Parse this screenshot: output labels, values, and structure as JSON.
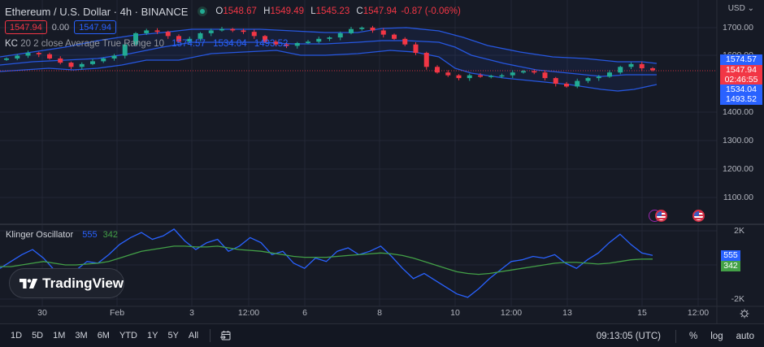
{
  "header": {
    "symbol_title": "Ethereum / U.S. Dollar · 4h · BINANCE",
    "market_status": "open",
    "ohlc": {
      "o_label": "O",
      "o": "1548.67",
      "h_label": "H",
      "h": "1549.49",
      "l_label": "L",
      "l": "1545.23",
      "c_label": "C",
      "c": "1547.94",
      "change": "-0.87 (-0.06%)"
    },
    "sell_price": "1547.94",
    "spread": "0.00",
    "buy_price": "1547.94"
  },
  "indicators": {
    "kc": {
      "name": "KC",
      "params": "20 2 close Average True Range 10",
      "upper": "1574.57",
      "basis": "1534.04",
      "lower": "1493.52"
    },
    "klinger": {
      "name": "Klinger Oscillator",
      "value": "555",
      "signal": "342"
    }
  },
  "price_axis": {
    "currency": "USD",
    "ticks": [
      "1700.00",
      "1600.00",
      "1400.00",
      "1300.00",
      "1200.00",
      "1100.00"
    ],
    "tags": {
      "kc_upper": "1574.57",
      "last_price": "1547.94",
      "countdown": "02:46:55",
      "kc_basis": "1534.04",
      "kc_lower": "1493.52"
    }
  },
  "osc_axis": {
    "ticks": [
      "2K",
      "-2K"
    ],
    "tags": {
      "value": "555",
      "signal": "342"
    }
  },
  "time_axis": {
    "labels": [
      "30",
      "Feb",
      "3",
      "12:00",
      "6",
      "8",
      "10",
      "12:00",
      "13",
      "15",
      "12:00"
    ]
  },
  "bottom_bar": {
    "ranges": [
      "1D",
      "5D",
      "1M",
      "3M",
      "6M",
      "YTD",
      "1Y",
      "5Y",
      "All"
    ],
    "clock": "09:13:05 (UTC)",
    "percent": "%",
    "log": "log",
    "auto": "auto"
  },
  "watermark": "TradingView",
  "colors": {
    "background": "#161a25",
    "up": "#22ab94",
    "down": "#f23645",
    "kc_band": "#2962ff",
    "klinger_line": "#2962ff",
    "signal_line": "#43a047"
  },
  "chart_data": [
    {
      "type": "candlestick",
      "title": "Ethereum / U.S. Dollar · 4h · BINANCE",
      "ylabel": "USD",
      "ylim": [
        1050,
        1730
      ],
      "y_ticks": [
        1100,
        1200,
        1300,
        1400,
        1600,
        1700
      ],
      "x_tick_labels": [
        "30",
        "Feb",
        "3",
        "12:00",
        "6",
        "8",
        "10",
        "12:00",
        "13",
        "15",
        "12:00"
      ],
      "last": {
        "open": 1548.67,
        "high": 1549.49,
        "low": 1545.23,
        "close": 1547.94,
        "change": -0.87,
        "change_pct": -0.06
      },
      "overlay": {
        "name": "Keltner Channels (20, 2, close, ATR 10)",
        "upper_last": 1574.57,
        "basis_last": 1534.04,
        "lower_last": 1493.52
      },
      "approx_close_path": [
        1590,
        1600,
        1610,
        1605,
        1590,
        1575,
        1560,
        1570,
        1580,
        1590,
        1600,
        1640,
        1680,
        1690,
        1685,
        1670,
        1650,
        1660,
        1680,
        1690,
        1695,
        1690,
        1685,
        1670,
        1650,
        1640,
        1635,
        1645,
        1650,
        1660,
        1665,
        1680,
        1695,
        1700,
        1690,
        1675,
        1660,
        1640,
        1610,
        1560,
        1540,
        1530,
        1520,
        1530,
        1525,
        1528,
        1530,
        1540,
        1545,
        1540,
        1520,
        1500,
        1490,
        1510,
        1520,
        1525,
        1540,
        1560,
        1570,
        1555,
        1548
      ]
    },
    {
      "type": "line",
      "title": "Klinger Oscillator",
      "ylim": [
        -2500,
        2500
      ],
      "y_ticks": [
        "2K",
        "-2K"
      ],
      "series": [
        {
          "name": "Klinger",
          "last": 555,
          "approx_values": [
            -200,
            200,
            600,
            900,
            400,
            -300,
            -600,
            -300,
            200,
            100,
            600,
            1200,
            1600,
            1900,
            1500,
            1700,
            2100,
            1400,
            900,
            1300,
            1500,
            800,
            1100,
            1600,
            1300,
            600,
            800,
            100,
            -200,
            400,
            200,
            800,
            1000,
            600,
            800,
            1100,
            500,
            -200,
            -800,
            -500,
            -900,
            -1300,
            -1700,
            -1900,
            -1400,
            -800,
            -300,
            200,
            300,
            500,
            400,
            600,
            100,
            -200,
            300,
            700,
            1300,
            1800,
            1200,
            700,
            555
          ]
        },
        {
          "name": "Signal",
          "last": 342,
          "approx_values": [
            -100,
            -100,
            0,
            100,
            200,
            100,
            0,
            0,
            50,
            100,
            200,
            400,
            600,
            800,
            900,
            1000,
            1100,
            1100,
            1050,
            1050,
            1100,
            1000,
            900,
            850,
            800,
            700,
            600,
            500,
            450,
            450,
            450,
            500,
            550,
            600,
            650,
            700,
            650,
            550,
            400,
            200,
            0,
            -200,
            -400,
            -500,
            -550,
            -500,
            -400,
            -300,
            -200,
            -100,
            0,
            100,
            150,
            150,
            100,
            50,
            100,
            200,
            300,
            340,
            342
          ]
        }
      ]
    }
  ]
}
